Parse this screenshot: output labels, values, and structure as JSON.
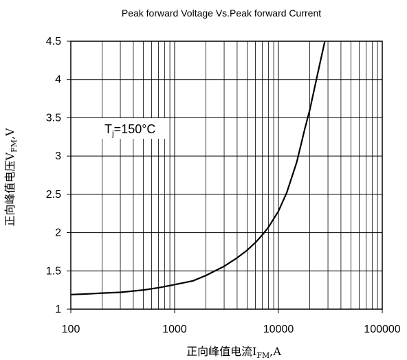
{
  "chart_data": {
    "type": "line",
    "title": "Peak forward Voltage Vs.Peak forward Current",
    "xlabel": {
      "main": "正向峰值电流I",
      "sub": "FM",
      "tail": ",A"
    },
    "ylabel": {
      "main": "正向峰值电压V",
      "sub": "FM",
      "tail": ",V"
    },
    "xscale": "log",
    "xlim": [
      100,
      100000
    ],
    "ylim": [
      1,
      4.5
    ],
    "x_tick_labels": [
      "100",
      "1000",
      "10000",
      "100000"
    ],
    "y_tick_labels": [
      "1",
      "1.5",
      "2",
      "2.5",
      "3",
      "3.5",
      "4",
      "4.5"
    ],
    "grid": true,
    "annotation": {
      "main": "T",
      "sub": "j",
      "tail": "=150°C"
    },
    "series": [
      {
        "x": [
          100,
          150,
          200,
          300,
          500,
          700,
          1000,
          1500,
          2000,
          3000,
          4000,
          5000,
          6000,
          7000,
          8000,
          10000,
          12000,
          15000,
          18000,
          20000,
          25000,
          28000
        ],
        "y": [
          1.19,
          1.2,
          1.21,
          1.22,
          1.25,
          1.28,
          1.32,
          1.37,
          1.44,
          1.56,
          1.67,
          1.77,
          1.87,
          1.97,
          2.07,
          2.28,
          2.52,
          2.92,
          3.36,
          3.6,
          4.2,
          4.5
        ]
      }
    ]
  }
}
